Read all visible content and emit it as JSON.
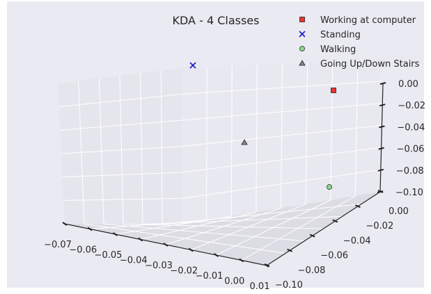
{
  "chart_data": {
    "type": "scatter",
    "title": "KDA - 4 Classes",
    "legend_position": "top-right",
    "grid": true,
    "projection": "3d",
    "x_ticks": [
      "−0.07",
      "−0.06",
      "−0.05",
      "−0.04",
      "−0.03",
      "−0.02",
      "−0.01",
      "0.00",
      "0.01"
    ],
    "y_ticks": [
      "−0.10",
      "−0.08",
      "−0.06",
      "−0.04",
      "−0.02",
      "0.00"
    ],
    "z_ticks": [
      "−0.10",
      "−0.08",
      "−0.06",
      "−0.04",
      "−0.02",
      "0.00"
    ],
    "xlim": [
      -0.07,
      0.01
    ],
    "ylim": [
      -0.1,
      0.0
    ],
    "zlim": [
      -0.1,
      0.0
    ],
    "series": [
      {
        "name": "Working at computer",
        "marker": "square",
        "color": "#ee3333",
        "points": [
          {
            "x": 0.0,
            "y": 0.0,
            "z": 0.0
          }
        ]
      },
      {
        "name": "Standing",
        "marker": "x",
        "color": "#1a1acc",
        "points": [
          {
            "x": -0.069,
            "y": 0.0,
            "z": -0.002
          }
        ]
      },
      {
        "name": "Walking",
        "marker": "circle",
        "color": "#88dd88",
        "points": [
          {
            "x": 0.0,
            "y": 0.0,
            "z": -0.092
          }
        ]
      },
      {
        "name": "Going Up/Down Stairs",
        "marker": "triangle",
        "color": "#888888",
        "points": [
          {
            "x": -0.04,
            "y": -0.05,
            "z": -0.05
          }
        ]
      }
    ]
  }
}
